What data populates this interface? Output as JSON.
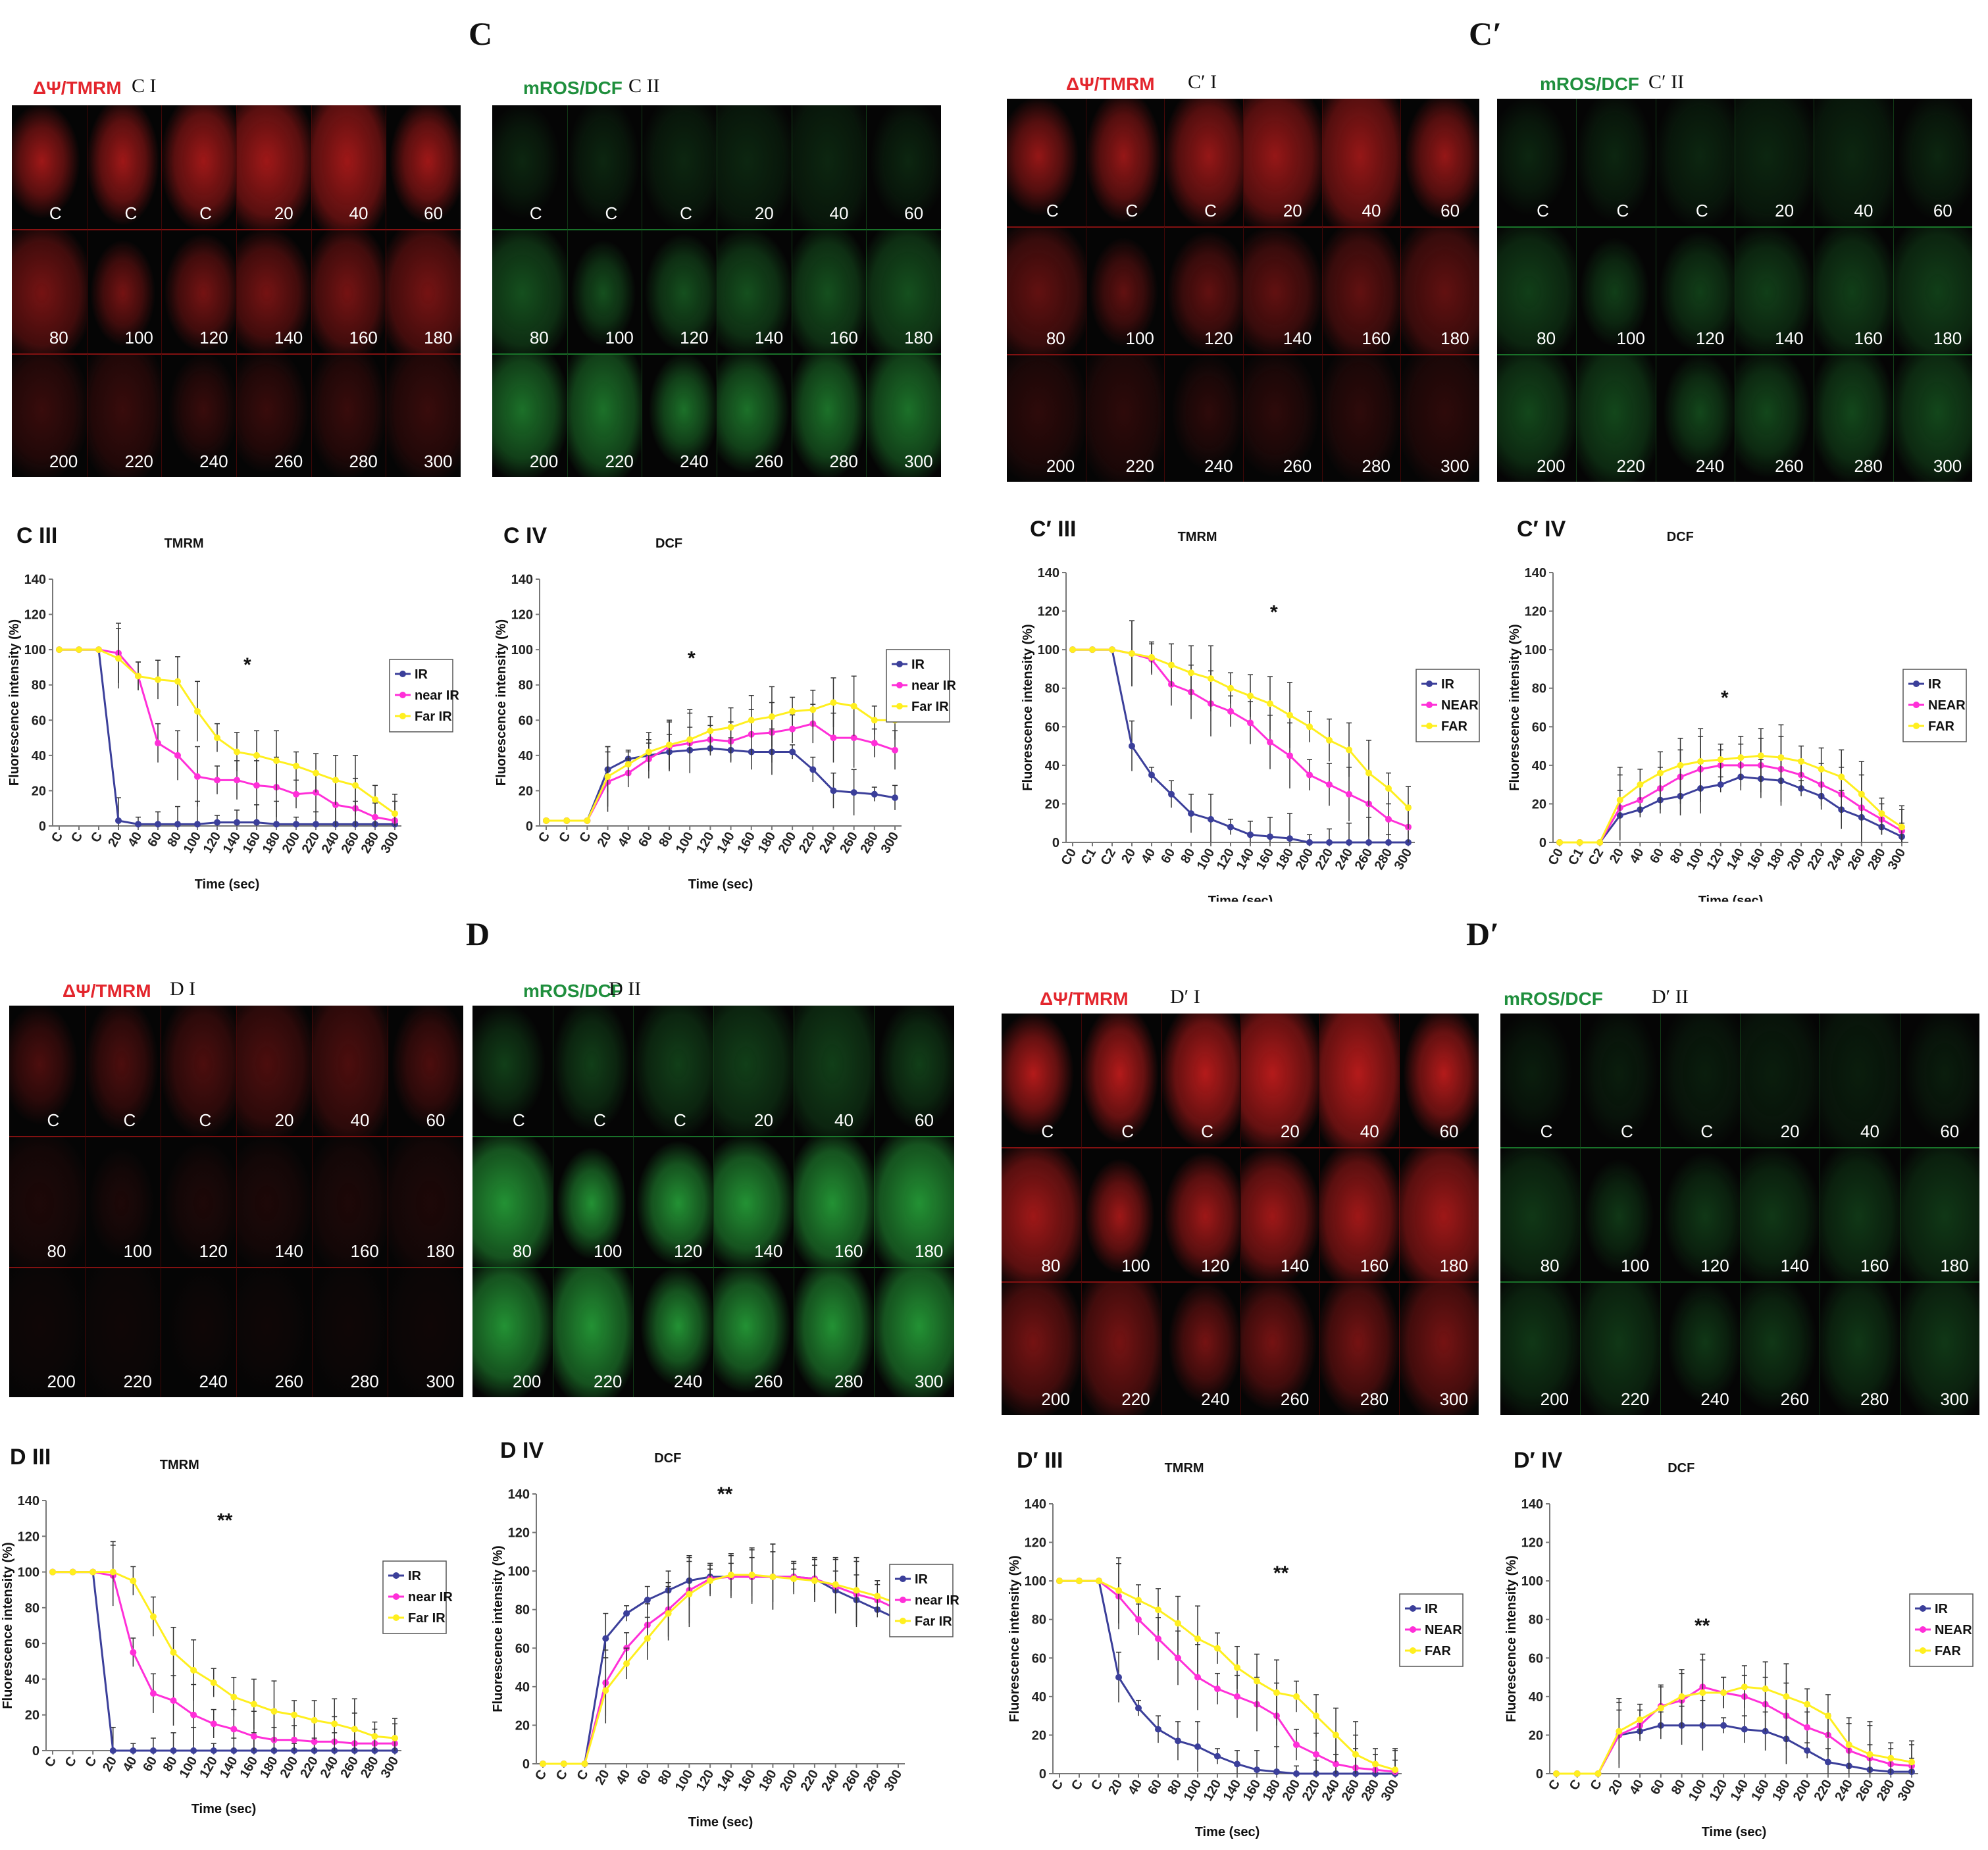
{
  "labels": {
    "C": "C",
    "Cp": "C′",
    "D": "D",
    "Dp": "D′"
  },
  "colors": {
    "red": "#e3262d",
    "green": "#1f8f3d",
    "IR": "#3b3f9a",
    "near": "#ff2fd8",
    "far": "#ffef1f"
  },
  "tile_labels": [
    [
      "C",
      "C",
      "C",
      "20",
      "40",
      "60"
    ],
    [
      "80",
      "100",
      "120",
      "140",
      "160",
      "180"
    ],
    [
      "200",
      "220",
      "240",
      "260",
      "280",
      "300"
    ]
  ],
  "image_panels": [
    {
      "key": "CI",
      "stain": "ΔΨ/TMRM",
      "name": "C I",
      "color": "red",
      "intensity": [
        0.75,
        0.55,
        0.25
      ]
    },
    {
      "key": "CII",
      "stain": "mROS/DCF",
      "name": "C II",
      "color": "green",
      "intensity": [
        0.2,
        0.45,
        0.65
      ]
    },
    {
      "key": "CpI",
      "stain": "ΔΨ/TMRM",
      "name": "C′ I",
      "color": "red",
      "intensity": [
        0.7,
        0.45,
        0.2
      ]
    },
    {
      "key": "CpII",
      "stain": "mROS/DCF",
      "name": "C′ II",
      "color": "green",
      "intensity": [
        0.2,
        0.35,
        0.4
      ]
    },
    {
      "key": "DI",
      "stain": "ΔΨ/TMRM",
      "name": "D I",
      "color": "red",
      "intensity": [
        0.35,
        0.12,
        0.05
      ]
    },
    {
      "key": "DII",
      "stain": "mROS/DCF",
      "name": "D II",
      "color": "green",
      "intensity": [
        0.35,
        0.85,
        0.85
      ]
    },
    {
      "key": "DpI",
      "stain": "ΔΨ/TMRM",
      "name": "D′ I",
      "color": "red",
      "intensity": [
        0.85,
        0.75,
        0.55
      ]
    },
    {
      "key": "DpII",
      "stain": "mROS/DCF",
      "name": "D′ II",
      "color": "green",
      "intensity": [
        0.15,
        0.3,
        0.3
      ]
    }
  ],
  "chart_data": [
    {
      "key": "CIII",
      "panel": "C III",
      "type": "line",
      "title": "TMRM",
      "xlabel": "Time (sec)",
      "ylabel": "Fluorescence intensity (%)",
      "ylim": [
        0,
        140
      ],
      "yticks": [
        0,
        20,
        40,
        60,
        80,
        100,
        120,
        140
      ],
      "categories": [
        "C",
        "C",
        "C",
        "20",
        "40",
        "60",
        "80",
        "100",
        "120",
        "140",
        "160",
        "180",
        "200",
        "220",
        "240",
        "260",
        "280",
        "300"
      ],
      "significance": "*",
      "legend": [
        "IR",
        "near IR",
        "Far IR"
      ],
      "series": [
        {
          "name": "IR",
          "values": [
            100,
            100,
            100,
            3,
            1,
            1,
            1,
            1,
            2,
            2,
            2,
            1,
            1,
            1,
            1,
            1,
            1,
            1
          ]
        },
        {
          "name": "near IR",
          "values": [
            100,
            100,
            100,
            98,
            85,
            47,
            40,
            28,
            26,
            26,
            23,
            22,
            18,
            19,
            12,
            10,
            5,
            3
          ]
        },
        {
          "name": "Far IR",
          "values": [
            100,
            100,
            100,
            95,
            85,
            83,
            82,
            65,
            50,
            42,
            40,
            37,
            34,
            30,
            26,
            23,
            15,
            7
          ]
        }
      ]
    },
    {
      "key": "CIV",
      "panel": "C IV",
      "type": "line",
      "title": "DCF",
      "xlabel": "Time (sec)",
      "ylabel": "Fluorescence intensity (%)",
      "ylim": [
        0,
        140
      ],
      "yticks": [
        0,
        20,
        40,
        60,
        80,
        100,
        120,
        140
      ],
      "categories": [
        "C",
        "C",
        "C",
        "20",
        "40",
        "60",
        "80",
        "100",
        "120",
        "140",
        "160",
        "180",
        "200",
        "220",
        "240",
        "260",
        "280",
        "300"
      ],
      "significance": "*",
      "legend": [
        "IR",
        "near IR",
        "Far IR"
      ],
      "series": [
        {
          "name": "IR",
          "values": [
            3,
            3,
            3,
            32,
            38,
            40,
            42,
            43,
            44,
            43,
            42,
            42,
            42,
            32,
            20,
            19,
            18,
            16
          ]
        },
        {
          "name": "near IR",
          "values": [
            3,
            3,
            3,
            25,
            30,
            38,
            45,
            47,
            49,
            48,
            52,
            53,
            55,
            58,
            50,
            50,
            47,
            43
          ]
        },
        {
          "name": "Far IR",
          "values": [
            3,
            3,
            3,
            28,
            35,
            42,
            46,
            49,
            54,
            56,
            60,
            62,
            65,
            66,
            70,
            68,
            60,
            60
          ]
        }
      ]
    },
    {
      "key": "CpIII",
      "panel": "C′ III",
      "type": "line",
      "title": "TMRM",
      "xlabel": "Time (sec)",
      "ylabel": "Fluorescence intensity (%)",
      "ylim": [
        0,
        140
      ],
      "yticks": [
        0,
        20,
        40,
        60,
        80,
        100,
        120,
        140
      ],
      "categories": [
        "C0",
        "C1",
        "C2",
        "20",
        "40",
        "60",
        "80",
        "100",
        "120",
        "140",
        "160",
        "180",
        "200",
        "220",
        "240",
        "260",
        "280",
        "300"
      ],
      "significance": "*",
      "legend": [
        "IR",
        "NEAR",
        "FAR"
      ],
      "series": [
        {
          "name": "IR",
          "values": [
            100,
            100,
            100,
            50,
            35,
            25,
            15,
            12,
            8,
            4,
            3,
            2,
            0,
            0,
            0,
            0,
            0,
            0
          ]
        },
        {
          "name": "NEAR",
          "values": [
            100,
            100,
            100,
            98,
            95,
            82,
            78,
            72,
            68,
            62,
            52,
            45,
            35,
            30,
            25,
            20,
            12,
            8
          ]
        },
        {
          "name": "FAR",
          "values": [
            100,
            100,
            100,
            98,
            96,
            92,
            88,
            85,
            80,
            76,
            72,
            66,
            60,
            53,
            48,
            36,
            28,
            18
          ]
        }
      ]
    },
    {
      "key": "CpIV",
      "panel": "C′ IV",
      "type": "line",
      "title": "DCF",
      "xlabel": "Time (sec)",
      "ylabel": "Fluorescence intensity (%)",
      "ylim": [
        0,
        140
      ],
      "yticks": [
        0,
        20,
        40,
        60,
        80,
        100,
        120,
        140
      ],
      "categories": [
        "C0",
        "C1",
        "C2",
        "20",
        "40",
        "60",
        "80",
        "100",
        "120",
        "140",
        "160",
        "180",
        "200",
        "220",
        "240",
        "260",
        "280",
        "300"
      ],
      "significance": "*",
      "legend": [
        "IR",
        "NEAR",
        "FAR"
      ],
      "series": [
        {
          "name": "IR",
          "values": [
            0,
            0,
            0,
            14,
            17,
            22,
            24,
            28,
            30,
            34,
            33,
            32,
            28,
            24,
            17,
            13,
            8,
            3
          ]
        },
        {
          "name": "NEAR",
          "values": [
            0,
            0,
            0,
            18,
            22,
            28,
            34,
            38,
            40,
            40,
            40,
            38,
            35,
            30,
            25,
            18,
            12,
            6
          ]
        },
        {
          "name": "FAR",
          "values": [
            0,
            0,
            0,
            22,
            30,
            36,
            40,
            42,
            43,
            44,
            45,
            44,
            42,
            38,
            34,
            25,
            15,
            8
          ]
        }
      ]
    },
    {
      "key": "DIII",
      "panel": "D III",
      "type": "line",
      "title": "TMRM",
      "xlabel": "Time (sec)",
      "ylabel": "Fluorescence intensity (%)",
      "ylim": [
        0,
        140
      ],
      "yticks": [
        0,
        20,
        40,
        60,
        80,
        100,
        120,
        140
      ],
      "categories": [
        "C",
        "C",
        "C",
        "20",
        "40",
        "60",
        "80",
        "100",
        "120",
        "140",
        "160",
        "180",
        "200",
        "220",
        "240",
        "260",
        "280",
        "300"
      ],
      "significance": "**",
      "legend": [
        "IR",
        "near IR",
        "Far IR"
      ],
      "series": [
        {
          "name": "IR",
          "values": [
            100,
            100,
            100,
            0,
            0,
            0,
            0,
            0,
            0,
            0,
            0,
            0,
            0,
            0,
            0,
            0,
            0,
            0
          ]
        },
        {
          "name": "near IR",
          "values": [
            100,
            100,
            100,
            98,
            55,
            32,
            28,
            20,
            15,
            12,
            8,
            6,
            6,
            5,
            5,
            4,
            4,
            4
          ]
        },
        {
          "name": "Far IR",
          "values": [
            100,
            100,
            100,
            100,
            95,
            75,
            55,
            45,
            38,
            30,
            26,
            22,
            20,
            17,
            15,
            12,
            8,
            7
          ]
        }
      ]
    },
    {
      "key": "DIV",
      "panel": "D IV",
      "type": "line",
      "title": "DCF",
      "xlabel": "Time (sec)",
      "ylabel": "Fluorescence intensity (%)",
      "ylim": [
        0,
        140
      ],
      "yticks": [
        0,
        20,
        40,
        60,
        80,
        100,
        120,
        140
      ],
      "categories": [
        "C",
        "C",
        "C",
        "20",
        "40",
        "60",
        "80",
        "100",
        "120",
        "140",
        "160",
        "180",
        "200",
        "220",
        "240",
        "260",
        "280",
        "300"
      ],
      "significance": "**",
      "legend": [
        "IR",
        "near IR",
        "Far IR"
      ],
      "series": [
        {
          "name": "IR",
          "values": [
            0,
            0,
            0,
            65,
            78,
            85,
            90,
            95,
            97,
            97,
            97,
            97,
            97,
            96,
            90,
            85,
            80,
            75
          ]
        },
        {
          "name": "near IR",
          "values": [
            0,
            0,
            0,
            42,
            60,
            72,
            80,
            90,
            96,
            97,
            97,
            97,
            97,
            96,
            92,
            88,
            85,
            80
          ]
        },
        {
          "name": "Far IR",
          "values": [
            0,
            0,
            0,
            38,
            52,
            65,
            78,
            88,
            95,
            98,
            98,
            97,
            96,
            95,
            93,
            90,
            87,
            83
          ]
        }
      ]
    },
    {
      "key": "DpIII",
      "panel": "D′ III",
      "type": "line",
      "title": "TMRM",
      "xlabel": "Time (sec)",
      "ylabel": "Fluorescence intensity (%)",
      "ylim": [
        0,
        140
      ],
      "yticks": [
        0,
        20,
        40,
        60,
        80,
        100,
        120,
        140
      ],
      "categories": [
        "C",
        "C",
        "C",
        "20",
        "40",
        "60",
        "80",
        "100",
        "120",
        "140",
        "160",
        "180",
        "200",
        "220",
        "240",
        "260",
        "280",
        "300"
      ],
      "significance": "**",
      "legend": [
        "IR",
        "NEAR",
        "FAR"
      ],
      "series": [
        {
          "name": "IR",
          "values": [
            100,
            100,
            100,
            50,
            34,
            23,
            17,
            14,
            9,
            5,
            2,
            1,
            0,
            0,
            0,
            0,
            0,
            0
          ]
        },
        {
          "name": "NEAR",
          "values": [
            100,
            100,
            100,
            92,
            80,
            70,
            60,
            50,
            44,
            40,
            36,
            30,
            15,
            10,
            5,
            3,
            2,
            1
          ]
        },
        {
          "name": "FAR",
          "values": [
            100,
            100,
            100,
            95,
            90,
            85,
            78,
            70,
            65,
            55,
            48,
            42,
            40,
            30,
            20,
            10,
            5,
            2
          ]
        }
      ]
    },
    {
      "key": "DpIV",
      "panel": "D′ IV",
      "type": "line",
      "title": "DCF",
      "xlabel": "Time (sec)",
      "ylabel": "Fluorescence intensity (%)",
      "ylim": [
        0,
        140
      ],
      "yticks": [
        0,
        20,
        40,
        60,
        80,
        100,
        120,
        140
      ],
      "categories": [
        "C",
        "C",
        "C",
        "20",
        "40",
        "60",
        "80",
        "100",
        "120",
        "140",
        "160",
        "180",
        "200",
        "220",
        "240",
        "260",
        "280",
        "300"
      ],
      "significance": "**",
      "legend": [
        "IR",
        "NEAR",
        "FAR"
      ],
      "series": [
        {
          "name": "IR",
          "values": [
            0,
            0,
            0,
            20,
            22,
            25,
            25,
            25,
            25,
            23,
            22,
            18,
            12,
            6,
            4,
            2,
            1,
            1
          ]
        },
        {
          "name": "NEAR",
          "values": [
            0,
            0,
            0,
            20,
            25,
            35,
            38,
            45,
            42,
            40,
            36,
            30,
            24,
            20,
            12,
            8,
            5,
            4
          ]
        },
        {
          "name": "FAR",
          "values": [
            0,
            0,
            0,
            22,
            28,
            34,
            40,
            42,
            42,
            45,
            44,
            40,
            36,
            30,
            15,
            10,
            8,
            6
          ]
        }
      ]
    }
  ]
}
